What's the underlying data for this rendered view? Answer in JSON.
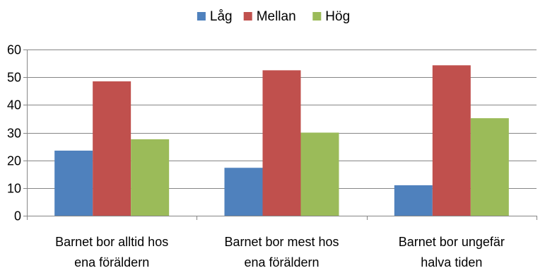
{
  "chart_data": {
    "type": "bar",
    "title": "",
    "xlabel": "",
    "ylabel": "",
    "categories": [
      [
        "Barnet bor alltid hos",
        "ena föräldern"
      ],
      [
        "Barnet bor mest hos",
        "ena föräldern"
      ],
      [
        "Barnet bor ungefär",
        "halva tiden"
      ]
    ],
    "series": [
      {
        "name": "Låg",
        "color": "#4f81bd",
        "values": [
          23.5,
          17.3,
          11
        ]
      },
      {
        "name": "Mellan",
        "color": "#c0504d",
        "values": [
          48.5,
          52.5,
          54.3
        ]
      },
      {
        "name": "Hög",
        "color": "#9bbb59",
        "values": [
          27.6,
          30,
          35.2
        ]
      }
    ],
    "ylim": [
      0,
      60
    ],
    "yticks": [
      0,
      10,
      20,
      30,
      40,
      50,
      60
    ],
    "grid": true,
    "legend_position": "top-center"
  }
}
